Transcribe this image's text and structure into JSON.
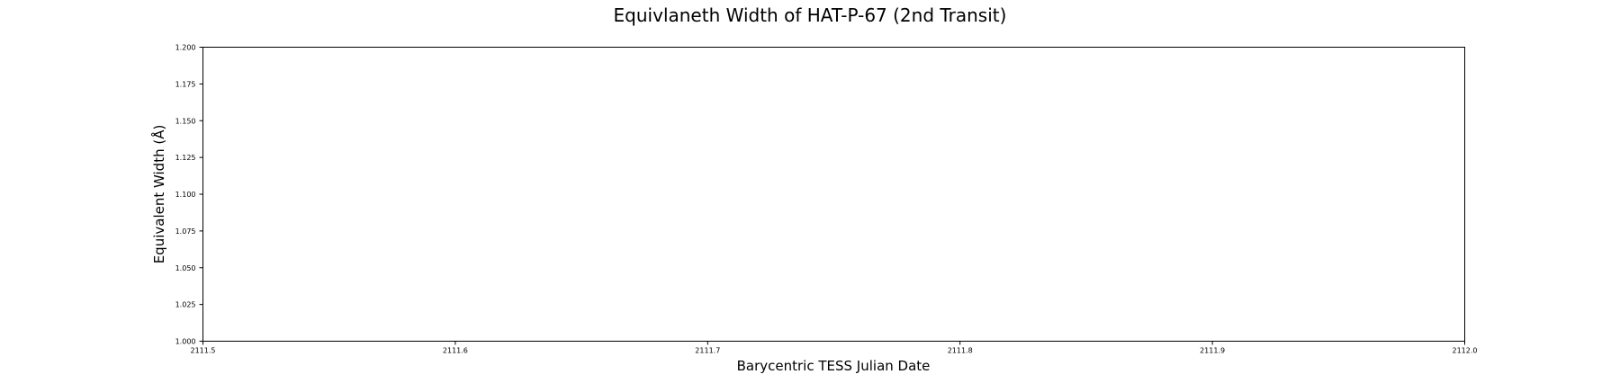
{
  "chart_data": {
    "type": "scatter",
    "title": "Equivlaneth Width of HAT-P-67 (2nd Transit)",
    "xlabel": "Barycentric TESS Julian Date",
    "ylabel": "Equivalent Width (Å)",
    "xlim": [
      2111.5,
      2112.0
    ],
    "ylim": [
      1.0,
      1.2
    ],
    "x_ticks": [
      2111.5,
      2111.6,
      2111.7,
      2111.8,
      2111.9,
      2112.0
    ],
    "x_tick_labels": [
      "2111.5",
      "2111.6",
      "2111.7",
      "2111.8",
      "2111.9",
      "2112.0"
    ],
    "y_ticks": [
      1.0,
      1.025,
      1.05,
      1.075,
      1.1,
      1.125,
      1.15,
      1.175,
      1.2
    ],
    "y_tick_labels": [
      "1.000",
      "1.025",
      "1.050",
      "1.075",
      "1.100",
      "1.125",
      "1.150",
      "1.175",
      "1.200"
    ],
    "grid": false,
    "series": [
      {
        "x": [],
        "y": []
      }
    ],
    "colors": {
      "axes": "#000000",
      "background": "#ffffff"
    }
  }
}
